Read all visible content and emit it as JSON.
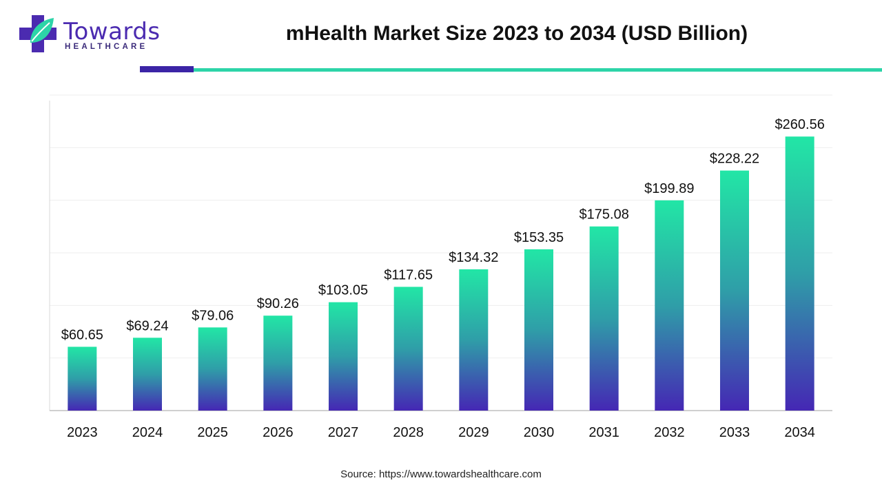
{
  "header": {
    "title": "mHealth Market Size 2023 to 2034 (USD Billion)",
    "logo_word": "Towards",
    "logo_sub": "HEALTHCARE",
    "logo_icon": "plus-leaf-icon"
  },
  "footer": {
    "source": "Source: https://www.towardshealthcare.com"
  },
  "colors": {
    "bar_top": "#22e6a6",
    "bar_mid": "#2f9ea8",
    "bar_bottom": "#4527b4",
    "accent_purple": "#3b24a6",
    "accent_teal": "#2dd4a8"
  },
  "chart_data": {
    "type": "bar",
    "title": "mHealth Market Size 2023 to 2034 (USD Billion)",
    "categories": [
      "2023",
      "2024",
      "2025",
      "2026",
      "2027",
      "2028",
      "2029",
      "2030",
      "2031",
      "2032",
      "2033",
      "2034"
    ],
    "values": [
      60.65,
      69.24,
      79.06,
      90.26,
      103.05,
      117.65,
      134.32,
      153.35,
      175.08,
      199.89,
      228.22,
      260.56
    ],
    "value_labels": [
      "$60.65",
      "$69.24",
      "$79.06",
      "$90.26",
      "$103.05",
      "$117.65",
      "$134.32",
      "$153.35",
      "$175.08",
      "$199.89",
      "$228.22",
      "$260.56"
    ],
    "xlabel": "",
    "ylabel": "",
    "ylim": [
      0,
      300
    ],
    "y_tick_values": [
      0,
      50,
      100,
      150,
      200,
      250,
      300
    ],
    "grid": true,
    "legend": "none"
  }
}
